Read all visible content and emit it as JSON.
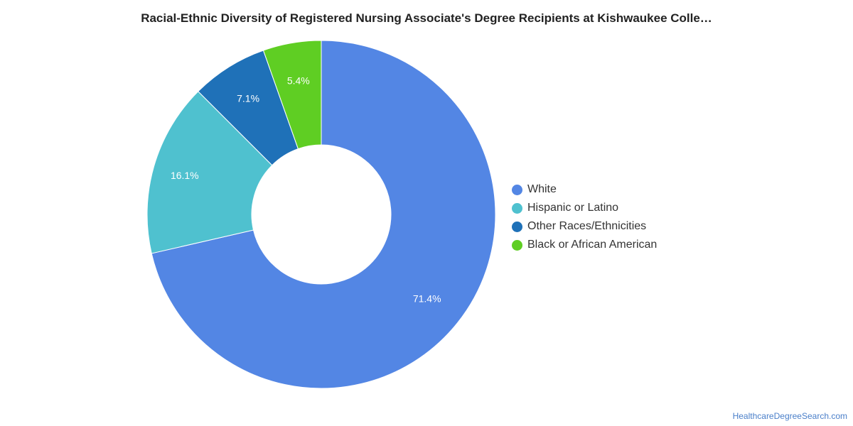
{
  "chart_data": {
    "type": "pie",
    "title": "Racial-Ethnic Diversity of Registered Nursing Associate's Degree Recipients at Kishwaukee Colle…",
    "donut": true,
    "categories": [
      "White",
      "Hispanic or Latino",
      "Other Races/Ethnicities",
      "Black or African American"
    ],
    "values": [
      71.4,
      16.1,
      7.1,
      5.4
    ],
    "value_labels": [
      "71.4%",
      "16.1%",
      "7.1%",
      "5.4%"
    ],
    "colors": [
      "#5386e4",
      "#4fc1cf",
      "#1f71b8",
      "#5fce23"
    ],
    "legend_position": "right"
  },
  "source": "HealthcareDegreeSearch.com"
}
